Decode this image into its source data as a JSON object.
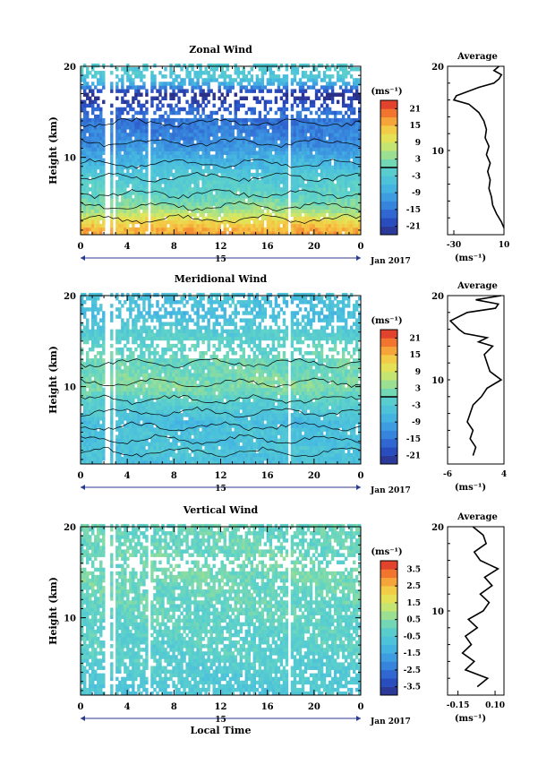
{
  "chart_data": [
    {
      "type": "heatmap",
      "title": "Zonal Wind",
      "ylabel": "Height (km)",
      "xlim": [
        0,
        24
      ],
      "ylim": [
        1.5,
        20
      ],
      "x_ticks": [
        "0",
        "4",
        "8",
        "12",
        "16",
        "20",
        "0"
      ],
      "x_tick_values": [
        0,
        4,
        8,
        12,
        16,
        20,
        24
      ],
      "y_ticks": [
        "20",
        "10"
      ],
      "y_tick_values": [
        20,
        10
      ],
      "date_label": "15",
      "month_label": "Jan 2017",
      "colorbar": {
        "unit": "(ms⁻¹)",
        "vmin": -24,
        "vmax": 24,
        "tick_labels": [
          "21",
          "15",
          "9",
          "3",
          "-3",
          "-9",
          "-15",
          "-21"
        ],
        "tick_values": [
          21,
          15,
          9,
          3,
          -3,
          -9,
          -15,
          -21
        ],
        "zero_line": true
      },
      "profile_by_height": {
        "height_km": [
          2,
          3,
          4,
          5,
          6,
          7,
          8,
          9,
          10,
          11,
          12,
          13,
          14,
          15,
          16,
          17,
          18,
          19
        ],
        "value_ms": [
          16,
          12,
          6,
          2,
          0,
          -2,
          -3,
          -6,
          -8,
          -11,
          -13,
          -14,
          -15,
          -16,
          -20,
          -24,
          -9,
          -3
        ]
      },
      "gap_times_hr": [
        2.3,
        2.9,
        5.9,
        17.8
      ],
      "average": {
        "title": "Average",
        "xlim": [
          -35,
          10
        ],
        "x_ticks": [
          "-30",
          "10"
        ],
        "x_tick_values": [
          -30,
          10
        ],
        "y_ticks": [
          "20",
          "10"
        ],
        "y_tick_values": [
          20,
          10
        ],
        "ylim": [
          0,
          20
        ],
        "xlabel": "(ms⁻¹)",
        "height_km": [
          0.8,
          1.5,
          2.5,
          3.5,
          4.5,
          5.5,
          6.5,
          7.5,
          8.5,
          9.5,
          10.5,
          11.5,
          12.5,
          13.5,
          14.5,
          15.5,
          16.0,
          16.5,
          17.5,
          18.0,
          18.5,
          19.0,
          19.5,
          20.0
        ],
        "value_ms": [
          10,
          8,
          4,
          1,
          0,
          -2,
          -1,
          -3,
          -1,
          -4,
          -2,
          -5,
          -4,
          -6,
          -10,
          -18,
          -30,
          -28,
          -10,
          2,
          6,
          8,
          2,
          6
        ]
      }
    },
    {
      "type": "heatmap",
      "title": "Meridional Wind",
      "ylabel": "Height (km)",
      "xlim": [
        0,
        24
      ],
      "ylim": [
        1.5,
        20
      ],
      "x_ticks": [
        "0",
        "4",
        "8",
        "12",
        "16",
        "20",
        "0"
      ],
      "x_tick_values": [
        0,
        4,
        8,
        12,
        16,
        20,
        24
      ],
      "y_ticks": [
        "20",
        "10"
      ],
      "y_tick_values": [
        20,
        10
      ],
      "date_label": "15",
      "month_label": "Jan 2017",
      "colorbar": {
        "unit": "(ms⁻¹)",
        "vmin": -24,
        "vmax": 24,
        "tick_labels": [
          "21",
          "15",
          "9",
          "3",
          "-3",
          "-9",
          "-15",
          "-21"
        ],
        "tick_values": [
          21,
          15,
          9,
          3,
          -3,
          -9,
          -15,
          -21
        ],
        "zero_line": true
      },
      "profile_by_height": {
        "height_km": [
          2,
          3,
          4,
          5,
          6,
          7,
          8,
          9,
          10,
          11,
          12,
          13,
          14,
          15,
          16,
          17,
          18,
          19
        ],
        "value_ms": [
          -5,
          -4,
          -5,
          -4,
          -6,
          -4,
          -2,
          0,
          3,
          2,
          1,
          1,
          0,
          -1,
          -2,
          -4,
          -6,
          -5
        ]
      },
      "gap_times_hr": [
        2.3,
        2.9,
        17.8
      ],
      "average": {
        "title": "Average",
        "xlim": [
          -6,
          4
        ],
        "x_ticks": [
          "-6",
          "4"
        ],
        "x_tick_values": [
          -6,
          4
        ],
        "y_ticks": [
          "20",
          "10"
        ],
        "y_tick_values": [
          20,
          10
        ],
        "ylim": [
          0,
          20
        ],
        "xlabel": "(ms⁻¹)",
        "height_km": [
          1.0,
          2.0,
          3.0,
          4.0,
          5.0,
          6.0,
          7.0,
          8.0,
          9.0,
          10.0,
          10.5,
          11.0,
          12.0,
          13.0,
          14.0,
          14.5,
          15.0,
          15.5,
          16.0,
          17.0,
          18.0,
          18.5,
          19.0,
          19.5,
          20.0
        ],
        "value_ms": [
          -1.5,
          -1.0,
          -2.0,
          -1.5,
          -2.5,
          -2.0,
          -1.5,
          0.0,
          1.0,
          3.5,
          2.5,
          1.5,
          1.0,
          0.5,
          2.0,
          -0.5,
          1.0,
          -3.0,
          -4.0,
          -5.5,
          -2.5,
          2.5,
          3.0,
          -1.0,
          3.5
        ]
      }
    },
    {
      "type": "heatmap",
      "title": "Vertical Wind",
      "ylabel": "Height (km)",
      "xlabel": "Local Time",
      "xlim": [
        0,
        24
      ],
      "ylim": [
        1.5,
        20
      ],
      "x_ticks": [
        "0",
        "4",
        "8",
        "12",
        "16",
        "20",
        "0"
      ],
      "x_tick_values": [
        0,
        4,
        8,
        12,
        16,
        20,
        24
      ],
      "y_ticks": [
        "20",
        "10"
      ],
      "y_tick_values": [
        20,
        10
      ],
      "date_label": "15",
      "month_label": "Jan 2017",
      "colorbar": {
        "unit": "(ms⁻¹)",
        "vmin": -4,
        "vmax": 4,
        "tick_labels": [
          "3.5",
          "2.5",
          "1.5",
          "0.5",
          "-0.5",
          "-1.5",
          "-2.5",
          "-3.5"
        ],
        "tick_values": [
          3.5,
          2.5,
          1.5,
          0.5,
          -0.5,
          -1.5,
          -2.5,
          -3.5
        ],
        "zero_line": false
      },
      "profile_by_height": {
        "height_km": [
          2,
          3,
          4,
          5,
          6,
          7,
          8,
          9,
          10,
          11,
          12,
          13,
          14,
          15,
          16,
          17,
          18,
          19
        ],
        "value_ms": [
          -0.6,
          -0.5,
          -0.4,
          -0.3,
          -0.2,
          -0.2,
          -0.1,
          -0.1,
          0.0,
          0.0,
          0.1,
          0.1,
          0.2,
          0.3,
          0.2,
          0.2,
          0.1,
          0.1
        ]
      },
      "gap_times_hr": [
        2.3,
        2.9,
        5.9,
        17.8
      ],
      "average": {
        "title": "Average",
        "xlim": [
          -0.22,
          0.16
        ],
        "x_ticks": [
          "-0.15",
          "0.10"
        ],
        "x_tick_values": [
          -0.15,
          0.1
        ],
        "y_ticks": [
          "20",
          "10"
        ],
        "y_tick_values": [
          20,
          10
        ],
        "ylim": [
          0,
          20
        ],
        "xlabel": "(ms⁻¹)",
        "height_km": [
          1.0,
          2.0,
          3.0,
          4.0,
          5.0,
          6.0,
          7.0,
          8.0,
          9.0,
          10.0,
          11.0,
          12.0,
          13.0,
          14.0,
          15.0,
          15.5,
          16.0,
          17.0,
          18.0,
          19.0,
          20.0
        ],
        "value_ms": [
          -0.02,
          0.05,
          -0.1,
          -0.04,
          -0.12,
          -0.06,
          -0.1,
          -0.02,
          -0.08,
          0.02,
          0.06,
          0.0,
          0.08,
          0.03,
          0.12,
          0.06,
          0.0,
          -0.04,
          0.04,
          0.02,
          -0.05
        ]
      }
    }
  ]
}
